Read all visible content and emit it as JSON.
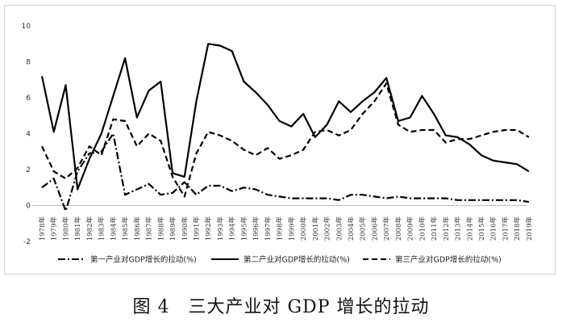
{
  "caption": "图 4　三大产业对 GDP 增长的拉动",
  "chart_data": {
    "type": "line",
    "title": "",
    "xlabel": "",
    "ylabel": "",
    "ylim": [
      -2,
      10
    ],
    "yticks": [
      "-2",
      "0",
      "2",
      "4",
      "6",
      "8",
      "10"
    ],
    "grid": false,
    "legend_position": "bottom",
    "categories": [
      "1978年",
      "1979年",
      "1980年",
      "1981年",
      "1982年",
      "1983年",
      "1984年",
      "1985年",
      "1986年",
      "1987年",
      "1988年",
      "1989年",
      "1990年",
      "1991年",
      "1992年",
      "1993年",
      "1994年",
      "1995年",
      "1996年",
      "1997年",
      "1998年",
      "1999年",
      "2000年",
      "2001年",
      "2002年",
      "2003年",
      "2004年",
      "2005年",
      "2006年",
      "2007年",
      "2008年",
      "2009年",
      "2010年",
      "2011年",
      "2012年",
      "2013年",
      "2014年",
      "2015年",
      "2016年",
      "2017年",
      "2018年",
      "2019年"
    ],
    "series": [
      {
        "name": "第一产业对GDP增长的拉动(%)",
        "style": "dashdot",
        "color": "#000000",
        "values": [
          1.0,
          1.5,
          -0.3,
          1.9,
          2.9,
          3.0,
          4.0,
          0.6,
          0.9,
          1.2,
          0.6,
          0.7,
          1.3,
          0.6,
          1.1,
          1.1,
          0.8,
          1.0,
          0.9,
          0.6,
          0.5,
          0.4,
          0.4,
          0.4,
          0.4,
          0.3,
          0.6,
          0.6,
          0.5,
          0.4,
          0.5,
          0.4,
          0.4,
          0.4,
          0.4,
          0.3,
          0.3,
          0.3,
          0.3,
          0.3,
          0.3,
          0.2
        ]
      },
      {
        "name": "第二产业对GDP增长的拉动(%)",
        "style": "solid",
        "color": "#000000",
        "values": [
          7.2,
          4.1,
          6.7,
          0.9,
          2.6,
          4.0,
          6.1,
          8.2,
          4.9,
          6.4,
          6.9,
          1.8,
          1.6,
          5.8,
          9.0,
          8.9,
          8.6,
          6.9,
          6.3,
          5.6,
          4.7,
          4.4,
          5.1,
          3.8,
          4.5,
          5.8,
          5.2,
          5.8,
          6.3,
          7.1,
          4.7,
          4.9,
          6.1,
          5.1,
          3.9,
          3.8,
          3.4,
          2.8,
          2.5,
          2.4,
          2.3,
          1.9
        ]
      },
      {
        "name": "第三产业对GDP增长的拉动(%)",
        "style": "dashed",
        "color": "#000000",
        "values": [
          3.3,
          1.9,
          1.5,
          2.1,
          3.3,
          2.8,
          4.8,
          4.7,
          3.3,
          4.0,
          3.6,
          1.6,
          0.5,
          2.9,
          4.1,
          3.9,
          3.6,
          3.1,
          2.8,
          3.2,
          2.6,
          2.8,
          3.1,
          4.1,
          4.2,
          3.9,
          4.2,
          5.1,
          5.8,
          6.8,
          4.5,
          4.1,
          4.2,
          4.2,
          3.5,
          3.7,
          3.7,
          3.9,
          4.1,
          4.2,
          4.2,
          3.8
        ]
      }
    ]
  }
}
